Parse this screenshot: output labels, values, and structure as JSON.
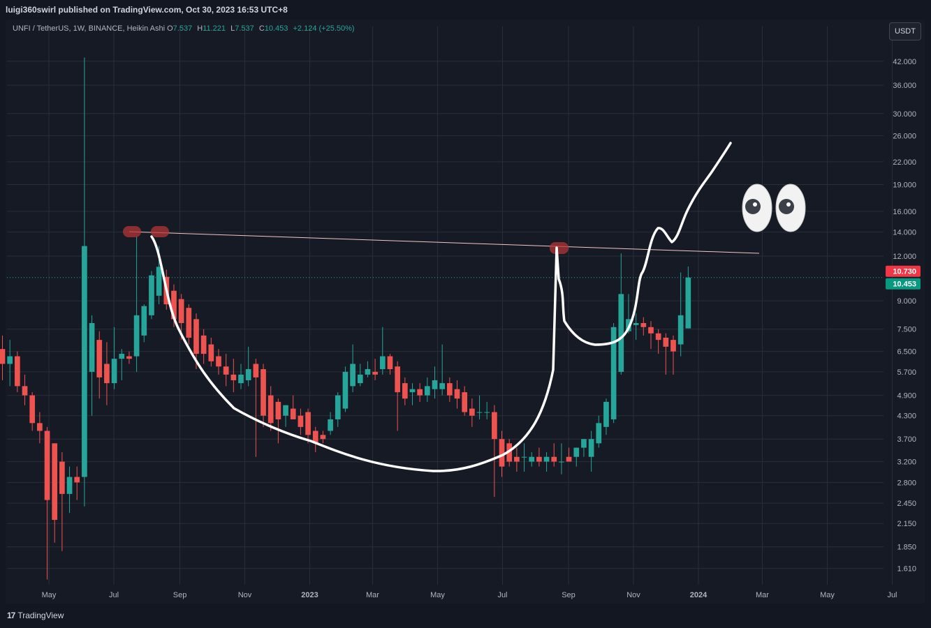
{
  "header": {
    "published": "luigi360swirl published on TradingView.com, Oct 30, 2023 16:53 UTC+8"
  },
  "legend": {
    "symbol": "UNFI / TetherUS, 1W, BINANCE, Heikin Ashi",
    "o_label": "O",
    "o_value": "7.537",
    "h_label": "H",
    "h_value": "11.221",
    "l_label": "L",
    "l_value": "7.537",
    "c_label": "C",
    "c_value": "10.453",
    "change": "+2.124 (+25.50%)"
  },
  "currency_button": "USDT",
  "footer": {
    "logo_mark": "17",
    "logo_text": "TradingView"
  },
  "colors": {
    "up": "#26a69a",
    "down": "#ef5350",
    "background": "#161a25",
    "grid": "#2a2e39",
    "drawing": "#ffffff",
    "trendline": "#f4c7c3",
    "marker": "#b2363a"
  },
  "chart_data": {
    "type": "candlestick",
    "chart_style": "Heikin Ashi",
    "symbol": "UNFI / TetherUS",
    "interval": "1W",
    "exchange": "BINANCE",
    "y_scale": "log",
    "ylim": [
      1.45,
      48
    ],
    "y_ticks": [
      "42.000",
      "36.000",
      "30.000",
      "26.000",
      "22.000",
      "19.000",
      "16.000",
      "14.000",
      "12.000",
      "9.000",
      "7.500",
      "6.500",
      "5.700",
      "4.900",
      "4.300",
      "3.700",
      "3.200",
      "2.800",
      "2.450",
      "2.150",
      "1.850",
      "1.610"
    ],
    "x_ticks": [
      "May",
      "Jul",
      "Sep",
      "Nov",
      "2023",
      "Mar",
      "May",
      "Jul",
      "Sep",
      "Nov",
      "2024",
      "Mar",
      "May",
      "Jul"
    ],
    "x_range": [
      "2022-04-04",
      "2024-07-29"
    ],
    "grid": true,
    "price_labels": [
      {
        "value": 10.73,
        "text": "10.730",
        "color": "#f23645"
      },
      {
        "value": 10.453,
        "text": "10.453",
        "color": "#089981"
      }
    ],
    "candles": [
      {
        "d": "2022-04-04",
        "o": 5.6,
        "h": 6.8,
        "l": 5.0,
        "c": 6.6
      },
      {
        "d": "2022-04-11",
        "o": 6.6,
        "h": 7.2,
        "l": 5.4,
        "c": 6.0
      },
      {
        "d": "2022-04-18",
        "o": 6.0,
        "h": 7.0,
        "l": 5.2,
        "c": 6.3
      },
      {
        "d": "2022-04-25",
        "o": 6.3,
        "h": 6.5,
        "l": 5.0,
        "c": 5.2
      },
      {
        "d": "2022-05-02",
        "o": 5.2,
        "h": 5.6,
        "l": 4.6,
        "c": 4.9
      },
      {
        "d": "2022-05-09",
        "o": 4.9,
        "h": 5.0,
        "l": 3.9,
        "c": 4.1
      },
      {
        "d": "2022-05-16",
        "o": 4.1,
        "h": 4.4,
        "l": 3.6,
        "c": 3.9
      },
      {
        "d": "2022-05-23",
        "o": 3.9,
        "h": 4.0,
        "l": 1.5,
        "c": 2.5
      },
      {
        "d": "2022-05-30",
        "o": 3.6,
        "h": 3.6,
        "l": 1.9,
        "c": 2.2
      },
      {
        "d": "2022-06-06",
        "o": 3.2,
        "h": 3.4,
        "l": 1.8,
        "c": 2.6
      },
      {
        "d": "2022-06-13",
        "o": 2.6,
        "h": 3.1,
        "l": 2.3,
        "c": 2.9
      },
      {
        "d": "2022-06-20",
        "o": 2.9,
        "h": 3.1,
        "l": 2.5,
        "c": 2.8
      },
      {
        "d": "2022-06-27",
        "o": 2.9,
        "h": 43.0,
        "l": 2.4,
        "c": 12.8
      },
      {
        "d": "2022-07-04",
        "o": 5.7,
        "h": 8.2,
        "l": 4.3,
        "c": 7.8
      },
      {
        "d": "2022-07-11",
        "o": 7.0,
        "h": 7.4,
        "l": 4.8,
        "c": 5.5
      },
      {
        "d": "2022-07-18",
        "o": 6.0,
        "h": 6.9,
        "l": 4.6,
        "c": 5.3
      },
      {
        "d": "2022-07-25",
        "o": 5.3,
        "h": 7.6,
        "l": 5.1,
        "c": 6.2
      },
      {
        "d": "2022-08-01",
        "o": 6.2,
        "h": 6.6,
        "l": 5.4,
        "c": 6.4
      },
      {
        "d": "2022-08-08",
        "o": 6.3,
        "h": 6.5,
        "l": 6.0,
        "c": 6.2
      },
      {
        "d": "2022-08-15",
        "o": 6.3,
        "h": 13.6,
        "l": 5.7,
        "c": 8.2
      },
      {
        "d": "2022-08-22",
        "o": 7.2,
        "h": 8.8,
        "l": 6.9,
        "c": 8.7
      },
      {
        "d": "2022-08-29",
        "o": 8.2,
        "h": 10.9,
        "l": 8.0,
        "c": 10.6
      },
      {
        "d": "2022-09-05",
        "o": 9.3,
        "h": 12.8,
        "l": 8.8,
        "c": 11.2
      },
      {
        "d": "2022-09-12",
        "o": 10.5,
        "h": 11.0,
        "l": 8.5,
        "c": 8.8
      },
      {
        "d": "2022-09-19",
        "o": 9.6,
        "h": 10.0,
        "l": 7.6,
        "c": 8.0
      },
      {
        "d": "2022-09-26",
        "o": 9.1,
        "h": 9.4,
        "l": 7.0,
        "c": 7.8
      },
      {
        "d": "2022-10-03",
        "o": 8.6,
        "h": 8.8,
        "l": 6.8,
        "c": 7.1
      },
      {
        "d": "2022-10-10",
        "o": 8.0,
        "h": 8.3,
        "l": 5.8,
        "c": 6.4
      },
      {
        "d": "2022-10-17",
        "o": 7.2,
        "h": 7.5,
        "l": 6.0,
        "c": 6.4
      },
      {
        "d": "2022-10-24",
        "o": 6.8,
        "h": 7.1,
        "l": 5.9,
        "c": 6.1
      },
      {
        "d": "2022-10-31",
        "o": 6.3,
        "h": 6.6,
        "l": 5.6,
        "c": 5.9
      },
      {
        "d": "2022-11-07",
        "o": 5.9,
        "h": 6.4,
        "l": 5.2,
        "c": 5.6
      },
      {
        "d": "2022-11-14",
        "o": 5.6,
        "h": 6.2,
        "l": 5.0,
        "c": 5.4
      },
      {
        "d": "2022-11-21",
        "o": 5.3,
        "h": 6.0,
        "l": 5.1,
        "c": 5.6
      },
      {
        "d": "2022-11-28",
        "o": 5.4,
        "h": 6.7,
        "l": 5.2,
        "c": 5.8
      },
      {
        "d": "2022-12-05",
        "o": 6.0,
        "h": 6.2,
        "l": 3.3,
        "c": 5.5
      },
      {
        "d": "2022-12-12",
        "o": 5.8,
        "h": 6.0,
        "l": 4.0,
        "c": 4.3
      },
      {
        "d": "2022-12-19",
        "o": 4.9,
        "h": 5.2,
        "l": 3.9,
        "c": 4.1
      },
      {
        "d": "2022-12-26",
        "o": 4.7,
        "h": 4.8,
        "l": 3.6,
        "c": 4.2
      },
      {
        "d": "2023-01-02",
        "o": 4.3,
        "h": 4.6,
        "l": 4.0,
        "c": 4.6
      },
      {
        "d": "2023-01-09",
        "o": 4.5,
        "h": 4.9,
        "l": 4.3,
        "c": 4.2
      },
      {
        "d": "2023-01-16",
        "o": 4.3,
        "h": 4.5,
        "l": 3.8,
        "c": 4.0
      },
      {
        "d": "2023-01-23",
        "o": 4.4,
        "h": 4.5,
        "l": 3.6,
        "c": 3.8
      },
      {
        "d": "2023-01-30",
        "o": 3.9,
        "h": 4.0,
        "l": 3.4,
        "c": 3.6
      },
      {
        "d": "2023-02-06",
        "o": 3.8,
        "h": 3.9,
        "l": 3.6,
        "c": 3.7
      },
      {
        "d": "2023-02-13",
        "o": 3.9,
        "h": 4.4,
        "l": 3.8,
        "c": 4.2
      },
      {
        "d": "2023-02-20",
        "o": 4.2,
        "h": 5.0,
        "l": 4.0,
        "c": 4.9
      },
      {
        "d": "2023-02-27",
        "o": 4.5,
        "h": 5.9,
        "l": 4.4,
        "c": 5.7
      },
      {
        "d": "2023-03-06",
        "o": 5.2,
        "h": 6.8,
        "l": 5.0,
        "c": 6.0
      },
      {
        "d": "2023-03-13",
        "o": 5.3,
        "h": 6.0,
        "l": 5.2,
        "c": 5.6
      },
      {
        "d": "2023-03-20",
        "o": 5.6,
        "h": 6.1,
        "l": 5.5,
        "c": 5.8
      },
      {
        "d": "2023-03-27",
        "o": 5.7,
        "h": 6.2,
        "l": 5.4,
        "c": 5.6
      },
      {
        "d": "2023-04-03",
        "o": 5.8,
        "h": 7.6,
        "l": 5.6,
        "c": 6.3
      },
      {
        "d": "2023-04-10",
        "o": 6.3,
        "h": 6.4,
        "l": 5.6,
        "c": 5.8
      },
      {
        "d": "2023-04-17",
        "o": 5.9,
        "h": 6.1,
        "l": 3.9,
        "c": 5.0
      },
      {
        "d": "2023-04-24",
        "o": 5.3,
        "h": 5.5,
        "l": 4.6,
        "c": 4.8
      },
      {
        "d": "2023-05-01",
        "o": 5.0,
        "h": 5.3,
        "l": 4.6,
        "c": 5.1
      },
      {
        "d": "2023-05-08",
        "o": 5.1,
        "h": 5.3,
        "l": 4.7,
        "c": 4.9
      },
      {
        "d": "2023-05-15",
        "o": 4.9,
        "h": 5.5,
        "l": 4.7,
        "c": 5.2
      },
      {
        "d": "2023-05-22",
        "o": 5.1,
        "h": 5.9,
        "l": 4.8,
        "c": 5.4
      },
      {
        "d": "2023-05-29",
        "o": 5.1,
        "h": 6.8,
        "l": 4.9,
        "c": 5.3
      },
      {
        "d": "2023-06-05",
        "o": 5.3,
        "h": 5.5,
        "l": 4.7,
        "c": 4.9
      },
      {
        "d": "2023-06-12",
        "o": 5.1,
        "h": 5.4,
        "l": 4.5,
        "c": 4.8
      },
      {
        "d": "2023-06-19",
        "o": 5.0,
        "h": 5.2,
        "l": 4.3,
        "c": 4.4
      },
      {
        "d": "2023-06-26",
        "o": 4.5,
        "h": 4.8,
        "l": 4.0,
        "c": 4.3
      },
      {
        "d": "2023-07-03",
        "o": 4.4,
        "h": 4.9,
        "l": 4.2,
        "c": 4.4
      },
      {
        "d": "2023-07-10",
        "o": 4.4,
        "h": 4.7,
        "l": 4.2,
        "c": 4.4
      },
      {
        "d": "2023-07-17",
        "o": 4.4,
        "h": 4.6,
        "l": 2.55,
        "c": 3.7
      },
      {
        "d": "2023-07-24",
        "o": 3.7,
        "h": 3.9,
        "l": 2.9,
        "c": 3.1
      },
      {
        "d": "2023-07-31",
        "o": 3.6,
        "h": 3.7,
        "l": 3.1,
        "c": 3.2
      },
      {
        "d": "2023-08-07",
        "o": 3.3,
        "h": 3.5,
        "l": 3.0,
        "c": 3.2
      },
      {
        "d": "2023-08-14",
        "o": 3.3,
        "h": 3.6,
        "l": 3.0,
        "c": 3.3
      },
      {
        "d": "2023-08-21",
        "o": 3.2,
        "h": 3.4,
        "l": 3.1,
        "c": 3.3
      },
      {
        "d": "2023-08-28",
        "o": 3.3,
        "h": 3.5,
        "l": 3.1,
        "c": 3.2
      },
      {
        "d": "2023-09-04",
        "o": 3.2,
        "h": 3.4,
        "l": 3.0,
        "c": 3.3
      },
      {
        "d": "2023-09-11",
        "o": 3.3,
        "h": 3.6,
        "l": 3.1,
        "c": 3.2
      },
      {
        "d": "2023-09-18",
        "o": 3.2,
        "h": 3.6,
        "l": 2.95,
        "c": 3.2
      },
      {
        "d": "2023-09-25",
        "o": 3.3,
        "h": 3.5,
        "l": 3.2,
        "c": 3.2
      },
      {
        "d": "2023-10-02",
        "o": 3.3,
        "h": 3.5,
        "l": 3.1,
        "c": 3.5
      },
      {
        "d": "2023-10-09",
        "o": 3.5,
        "h": 3.7,
        "l": 3.3,
        "c": 3.7
      },
      {
        "d": "2023-10-16",
        "o": 3.3,
        "h": 3.9,
        "l": 3.0,
        "c": 3.7
      },
      {
        "d": "2023-10-23",
        "o": 3.6,
        "h": 4.3,
        "l": 3.5,
        "c": 4.1
      },
      {
        "d": "2023-10-30",
        "o": 4.0,
        "h": 4.8,
        "l": 3.8,
        "c": 4.7
      },
      {
        "d": "2023-11-06",
        "o": 4.2,
        "h": 7.8,
        "l": 4.1,
        "c": 7.6
      },
      {
        "d": "2023-11-13",
        "o": 5.7,
        "h": 12.2,
        "l": 5.6,
        "c": 9.4
      },
      {
        "d": "2023-11-20",
        "o": 7.4,
        "h": 9.4,
        "l": 7.3,
        "c": 8.0
      },
      {
        "d": "2023-11-27",
        "o": 7.7,
        "h": 8.3,
        "l": 7.0,
        "c": 7.8
      },
      {
        "d": "2023-12-04",
        "o": 7.8,
        "h": 8.1,
        "l": 7.2,
        "c": 7.6
      },
      {
        "d": "2023-12-11",
        "o": 7.6,
        "h": 7.9,
        "l": 6.6,
        "c": 7.3
      },
      {
        "d": "2023-12-18",
        "o": 7.3,
        "h": 7.5,
        "l": 6.4,
        "c": 7.0
      },
      {
        "d": "2023-12-25",
        "o": 7.1,
        "h": 7.3,
        "l": 5.6,
        "c": 6.7
      },
      {
        "d": "2024-01-01",
        "o": 7.0,
        "h": 7.2,
        "l": 5.6,
        "c": 6.5
      },
      {
        "d": "2024-01-08",
        "o": 6.8,
        "h": 10.8,
        "l": 6.3,
        "c": 8.2
      },
      {
        "d": "2024-01-15",
        "o": 7.537,
        "h": 11.221,
        "l": 7.537,
        "c": 10.453
      }
    ]
  }
}
